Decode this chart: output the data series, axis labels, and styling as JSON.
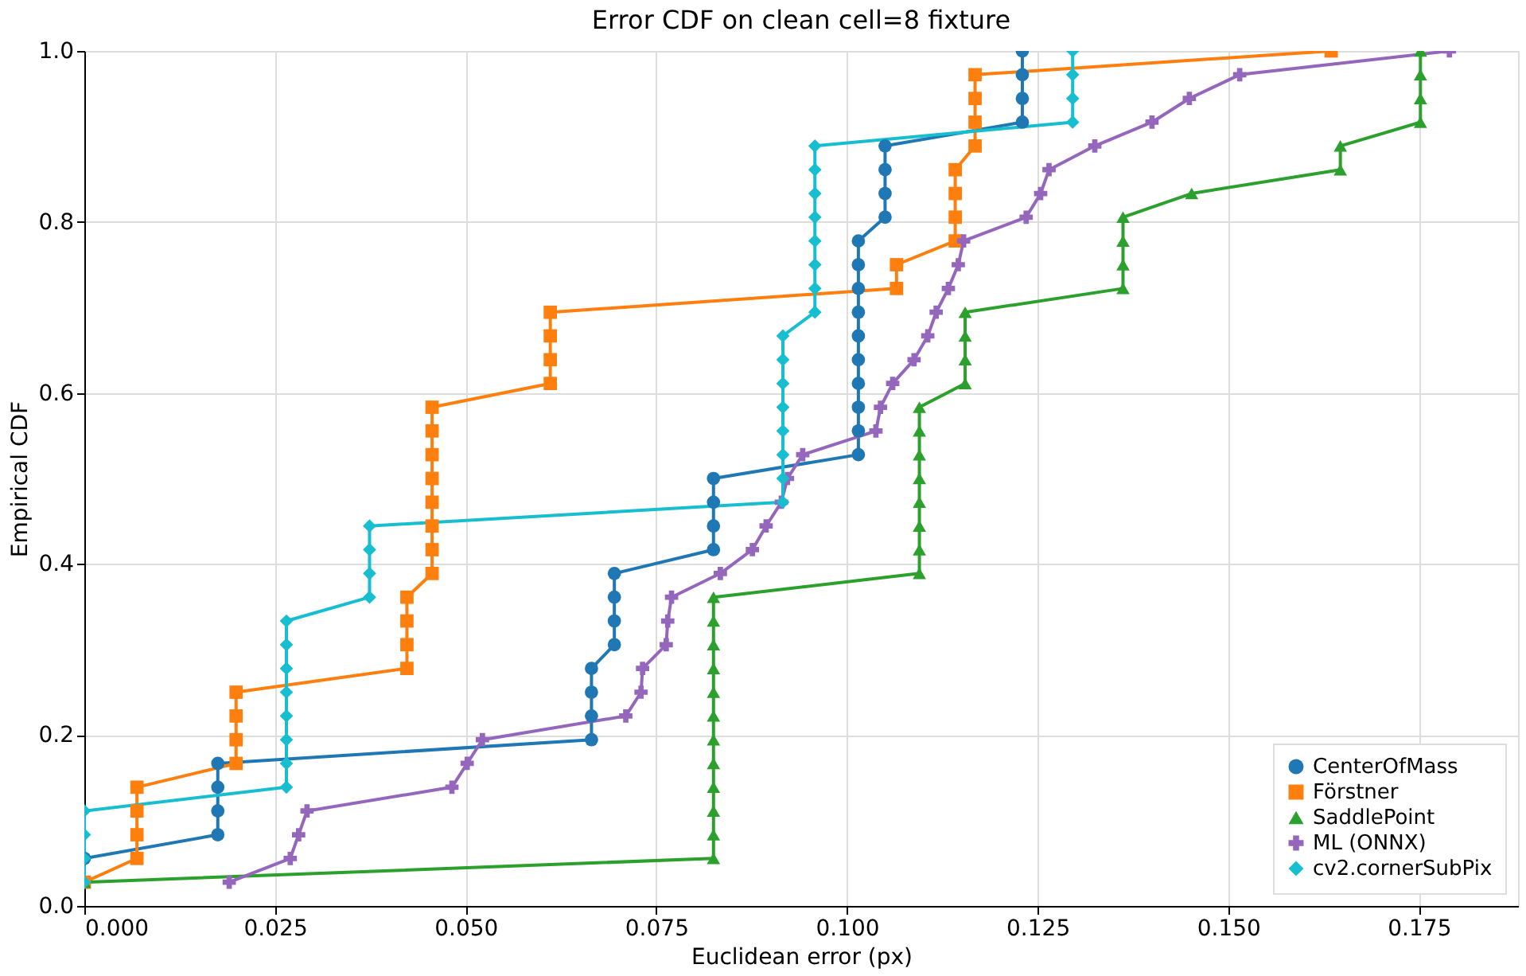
{
  "chart_data": {
    "type": "line",
    "title": "Error CDF on clean cell=8 fixture",
    "xlabel": "Euclidean error (px)",
    "ylabel": "Empirical CDF",
    "xlim": [
      0,
      0.188
    ],
    "ylim": [
      0,
      1
    ],
    "xticks": [
      {
        "value": 0,
        "label": "0.000"
      },
      {
        "value": 0.025,
        "label": "0.025"
      },
      {
        "value": 0.05,
        "label": "0.050"
      },
      {
        "value": 0.075,
        "label": "0.075"
      },
      {
        "value": 0.1,
        "label": "0.100"
      },
      {
        "value": 0.125,
        "label": "0.125"
      },
      {
        "value": 0.15,
        "label": "0.150"
      },
      {
        "value": 0.175,
        "label": "0.175"
      }
    ],
    "yticks": [
      {
        "value": 0,
        "label": "0.0"
      },
      {
        "value": 0.2,
        "label": "0.2"
      },
      {
        "value": 0.4,
        "label": "0.4"
      },
      {
        "value": 0.6,
        "label": "0.6"
      },
      {
        "value": 0.8,
        "label": "0.8"
      },
      {
        "value": 1,
        "label": "1.0"
      }
    ],
    "grid": true,
    "legend": "bottom right",
    "line_style": "solid",
    "series": [
      {
        "name": "CenterOfMass",
        "color": "#1f77b4",
        "marker": "circle",
        "x": [
          0,
          0,
          0.0175,
          0.0175,
          0.0175,
          0.0175,
          0.0665,
          0.0665,
          0.0665,
          0.0665,
          0.0695,
          0.0695,
          0.0695,
          0.0695,
          0.0825,
          0.0825,
          0.0825,
          0.0825,
          0.1015,
          0.1015,
          0.1015,
          0.1015,
          0.1015,
          0.1015,
          0.1015,
          0.1015,
          0.1015,
          0.1015,
          0.105,
          0.105,
          0.105,
          0.105,
          0.123,
          0.123,
          0.123,
          0.123
        ],
        "values": [
          0.0278,
          0.0556,
          0.0833,
          0.1111,
          0.1389,
          0.1667,
          0.1944,
          0.2222,
          0.25,
          0.2778,
          0.3056,
          0.3333,
          0.3611,
          0.3889,
          0.4167,
          0.4444,
          0.4722,
          0.5,
          0.5278,
          0.5556,
          0.5833,
          0.6111,
          0.6389,
          0.6667,
          0.6944,
          0.7222,
          0.75,
          0.7778,
          0.8056,
          0.8333,
          0.8611,
          0.8889,
          0.9167,
          0.9444,
          0.9722,
          1.0
        ]
      },
      {
        "name": "Förstner",
        "color": "#ff7f0e",
        "marker": "square",
        "x": [
          0,
          0.0069,
          0.0069,
          0.0069,
          0.0069,
          0.0199,
          0.0199,
          0.0199,
          0.0199,
          0.0423,
          0.0423,
          0.0423,
          0.0423,
          0.0456,
          0.0456,
          0.0456,
          0.0456,
          0.0456,
          0.0456,
          0.0456,
          0.0456,
          0.0611,
          0.0611,
          0.0611,
          0.0611,
          0.1065,
          0.1065,
          0.1142,
          0.1142,
          0.1142,
          0.1142,
          0.1168,
          0.1168,
          0.1168,
          0.1168,
          0.1635
        ],
        "values": [
          0.0278,
          0.0556,
          0.0833,
          0.1111,
          0.1389,
          0.1667,
          0.1944,
          0.2222,
          0.25,
          0.2778,
          0.3056,
          0.3333,
          0.3611,
          0.3889,
          0.4167,
          0.4444,
          0.4722,
          0.5,
          0.5278,
          0.5556,
          0.5833,
          0.6111,
          0.6389,
          0.6667,
          0.6944,
          0.7222,
          0.75,
          0.7778,
          0.8056,
          0.8333,
          0.8611,
          0.8889,
          0.9167,
          0.9444,
          0.9722,
          1.0
        ]
      },
      {
        "name": "SaddlePoint",
        "color": "#2ca02c",
        "marker": "triangle",
        "x": [
          0,
          0.0825,
          0.0825,
          0.0825,
          0.0825,
          0.0825,
          0.0825,
          0.0825,
          0.0825,
          0.0825,
          0.0825,
          0.0825,
          0.0825,
          0.1095,
          0.1095,
          0.1095,
          0.1095,
          0.1095,
          0.1095,
          0.1095,
          0.1095,
          0.1155,
          0.1155,
          0.1155,
          0.1155,
          0.1362,
          0.1362,
          0.1362,
          0.1362,
          0.1452,
          0.1647,
          0.1647,
          0.1752,
          0.1752,
          0.1752,
          0.1752
        ],
        "values": [
          0.0278,
          0.0556,
          0.0833,
          0.1111,
          0.1389,
          0.1667,
          0.1944,
          0.2222,
          0.25,
          0.2778,
          0.3056,
          0.3333,
          0.3611,
          0.3889,
          0.4167,
          0.4444,
          0.4722,
          0.5,
          0.5278,
          0.5556,
          0.5833,
          0.6111,
          0.6389,
          0.6667,
          0.6944,
          0.7222,
          0.75,
          0.7778,
          0.8056,
          0.8333,
          0.8611,
          0.8889,
          0.9167,
          0.9444,
          0.9722,
          1.0
        ]
      },
      {
        "name": "ML (ONNX)",
        "color": "#9467bd",
        "marker": "cross",
        "x": [
          0.019,
          0.027,
          0.0281,
          0.0292,
          0.0482,
          0.0502,
          0.0522,
          0.071,
          0.073,
          0.0732,
          0.0763,
          0.0765,
          0.077,
          0.0834,
          0.0876,
          0.0894,
          0.0914,
          0.0922,
          0.0942,
          0.1038,
          0.1044,
          0.106,
          0.1088,
          0.1106,
          0.1117,
          0.1133,
          0.1146,
          0.1153,
          0.1235,
          0.1254,
          0.1265,
          0.1325,
          0.14,
          0.1449,
          0.1515,
          0.179
        ],
        "values": [
          0.0278,
          0.0556,
          0.0833,
          0.1111,
          0.1389,
          0.1667,
          0.1944,
          0.2222,
          0.25,
          0.2778,
          0.3056,
          0.3333,
          0.3611,
          0.3889,
          0.4167,
          0.4444,
          0.4722,
          0.5,
          0.5278,
          0.5556,
          0.5833,
          0.6111,
          0.6389,
          0.6667,
          0.6944,
          0.7222,
          0.75,
          0.7778,
          0.8056,
          0.8333,
          0.8611,
          0.8889,
          0.9167,
          0.9444,
          0.9722,
          1.0
        ]
      },
      {
        "name": "cv2.cornerSubPix",
        "color": "#17becf",
        "marker": "diamond",
        "x": [
          0,
          0,
          0,
          0,
          0.0265,
          0.0265,
          0.0265,
          0.0265,
          0.0265,
          0.0265,
          0.0265,
          0.0265,
          0.0374,
          0.0374,
          0.0374,
          0.0374,
          0.0916,
          0.0916,
          0.0916,
          0.0916,
          0.0916,
          0.0916,
          0.0916,
          0.0916,
          0.0958,
          0.0958,
          0.0958,
          0.0958,
          0.0958,
          0.0958,
          0.0958,
          0.0958,
          0.1296,
          0.1296,
          0.1296,
          0.1296
        ],
        "values": [
          0.0278,
          0.0556,
          0.0833,
          0.1111,
          0.1389,
          0.1667,
          0.1944,
          0.2222,
          0.25,
          0.2778,
          0.3056,
          0.3333,
          0.3611,
          0.3889,
          0.4167,
          0.4444,
          0.4722,
          0.5,
          0.5278,
          0.5556,
          0.5833,
          0.6111,
          0.6389,
          0.6667,
          0.6944,
          0.7222,
          0.75,
          0.7778,
          0.8056,
          0.8333,
          0.8611,
          0.8889,
          0.9167,
          0.9444,
          0.9722,
          1.0
        ]
      }
    ]
  }
}
